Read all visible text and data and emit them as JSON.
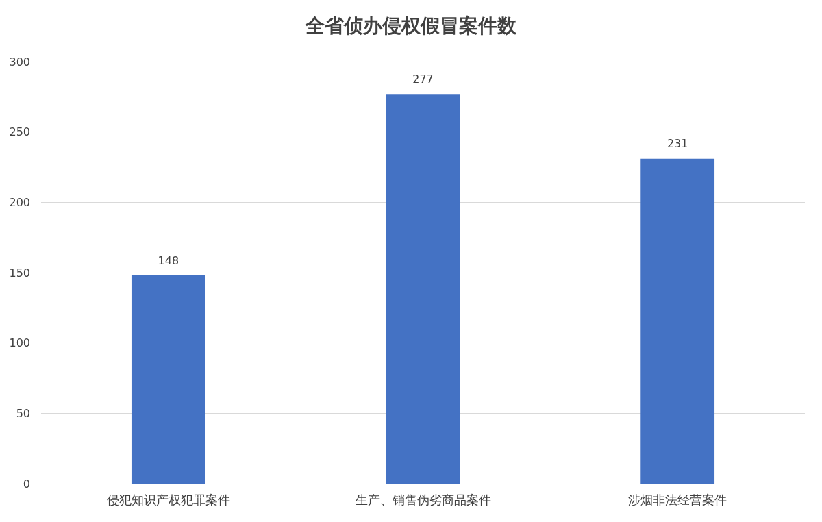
{
  "chart_data": {
    "type": "bar",
    "title": "全省侦办侵权假冒案件数",
    "categories": [
      "侵犯知识产权犯罪案件",
      "生产、销售伪劣商品案件",
      "涉烟非法经营案件"
    ],
    "values": [
      148,
      277,
      231
    ],
    "color": "#4472c4",
    "ylim": [
      0,
      300
    ],
    "yticks": [
      0,
      50,
      100,
      150,
      200,
      250,
      300
    ],
    "grid": "y",
    "data_labels": true
  }
}
